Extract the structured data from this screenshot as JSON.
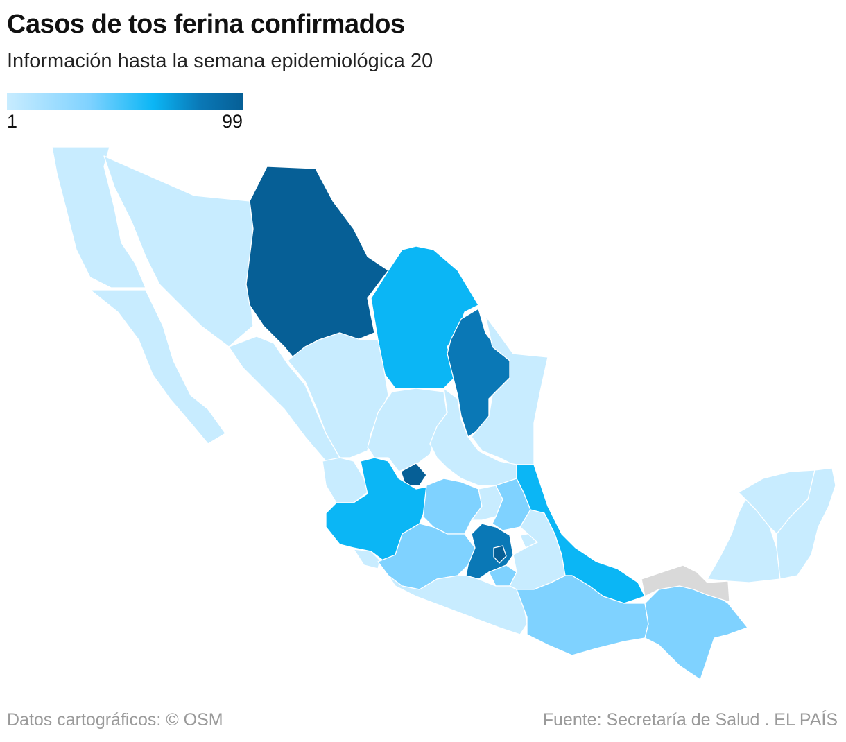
{
  "header": {
    "title": "Casos de tos ferina confirmados",
    "subtitle": "Información hasta la semana epidemiológica 20"
  },
  "legend": {
    "min_label": "1",
    "max_label": "99",
    "min_value": 1,
    "max_value": 99,
    "colors": [
      "#c8ecff",
      "#7fd2ff",
      "#0bb6f5",
      "#0a78b6",
      "#065f96"
    ],
    "no_data_color": "#d9d9d9"
  },
  "footer": {
    "credit": "Datos cartográficos: © OSM",
    "source": "Fuente: Secretaría de Salud . EL PAÍS"
  },
  "map_data": {
    "type": "choropleth",
    "region": "México",
    "states": [
      {
        "id": "baja-california",
        "level": 1
      },
      {
        "id": "baja-california-sur",
        "level": 1
      },
      {
        "id": "sonora",
        "level": 1
      },
      {
        "id": "chihuahua",
        "level": 5
      },
      {
        "id": "coahuila",
        "level": 3
      },
      {
        "id": "nuevo-leon",
        "level": 4
      },
      {
        "id": "tamaulipas",
        "level": 1
      },
      {
        "id": "sinaloa",
        "level": 1
      },
      {
        "id": "durango",
        "level": 1
      },
      {
        "id": "zacatecas",
        "level": 1
      },
      {
        "id": "san-luis-potosi",
        "level": 1
      },
      {
        "id": "nayarit",
        "level": 1
      },
      {
        "id": "aguascalientes",
        "level": 5
      },
      {
        "id": "jalisco",
        "level": 3
      },
      {
        "id": "guanajuato",
        "level": 2
      },
      {
        "id": "queretaro",
        "level": 1
      },
      {
        "id": "hidalgo",
        "level": 2
      },
      {
        "id": "colima",
        "level": 1
      },
      {
        "id": "michoacan",
        "level": 2
      },
      {
        "id": "estado-de-mexico",
        "level": 4
      },
      {
        "id": "ciudad-de-mexico",
        "level": 5
      },
      {
        "id": "morelos",
        "level": 2
      },
      {
        "id": "tlaxcala",
        "level": 1
      },
      {
        "id": "puebla",
        "level": 1
      },
      {
        "id": "veracruz",
        "level": 3
      },
      {
        "id": "guerrero",
        "level": 1
      },
      {
        "id": "oaxaca",
        "level": 2
      },
      {
        "id": "chiapas",
        "level": 2
      },
      {
        "id": "tabasco",
        "level": 0
      },
      {
        "id": "campeche",
        "level": 1
      },
      {
        "id": "yucatan",
        "level": 1
      },
      {
        "id": "quintana-roo",
        "level": 1
      }
    ]
  }
}
